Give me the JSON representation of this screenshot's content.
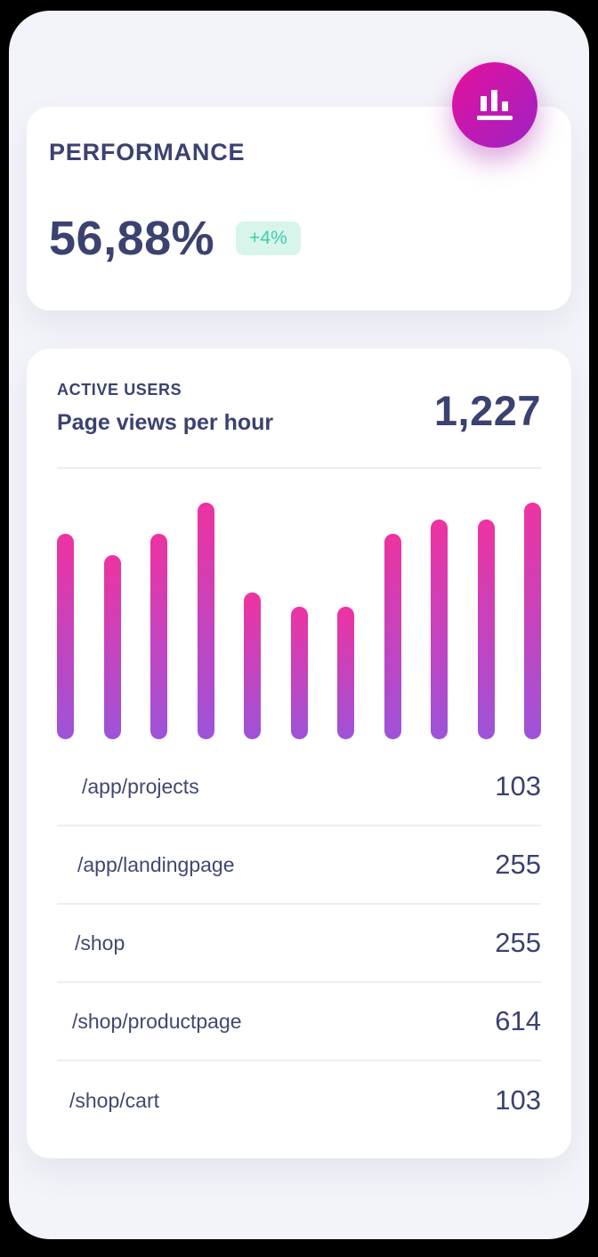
{
  "performance_card": {
    "title": "PERFORMANCE",
    "value": "56,88%",
    "badge": "+4%"
  },
  "fab": {
    "icon": "bar-chart-icon"
  },
  "active_users_card": {
    "kicker": "ACTIVE USERS",
    "title": "Page views per hour",
    "total": "1,227",
    "rows": [
      {
        "path": "/app/projects",
        "value": "103"
      },
      {
        "path": "/app/landingpage",
        "value": "255"
      },
      {
        "path": "/shop",
        "value": "255"
      },
      {
        "path": "/shop/productpage",
        "value": "614"
      },
      {
        "path": "/shop/cart",
        "value": "103"
      }
    ]
  },
  "chart_data": {
    "type": "bar",
    "title": "Page views per hour",
    "context_label": "ACTIVE USERS",
    "total_label": "1,227",
    "values": [
      87,
      78,
      87,
      100,
      62,
      56,
      56,
      87,
      93,
      93,
      100
    ],
    "value_unit": "percent_of_max_bar_height",
    "ylim": [
      0,
      100
    ],
    "grid": false,
    "legend": false,
    "bar_gradient": [
      "#ee33a1",
      "#9d53d9"
    ]
  },
  "colors": {
    "navy_text": "#3b4270",
    "badge_bg": "#d8f5ec",
    "badge_text": "#3ecfa9",
    "fab_gradient": [
      "#e5119b",
      "#9e21c6"
    ],
    "screen_bg": "#f3f4f9",
    "card_bg": "#ffffff",
    "divider": "#ededf4",
    "frame_bg": "#000000"
  }
}
